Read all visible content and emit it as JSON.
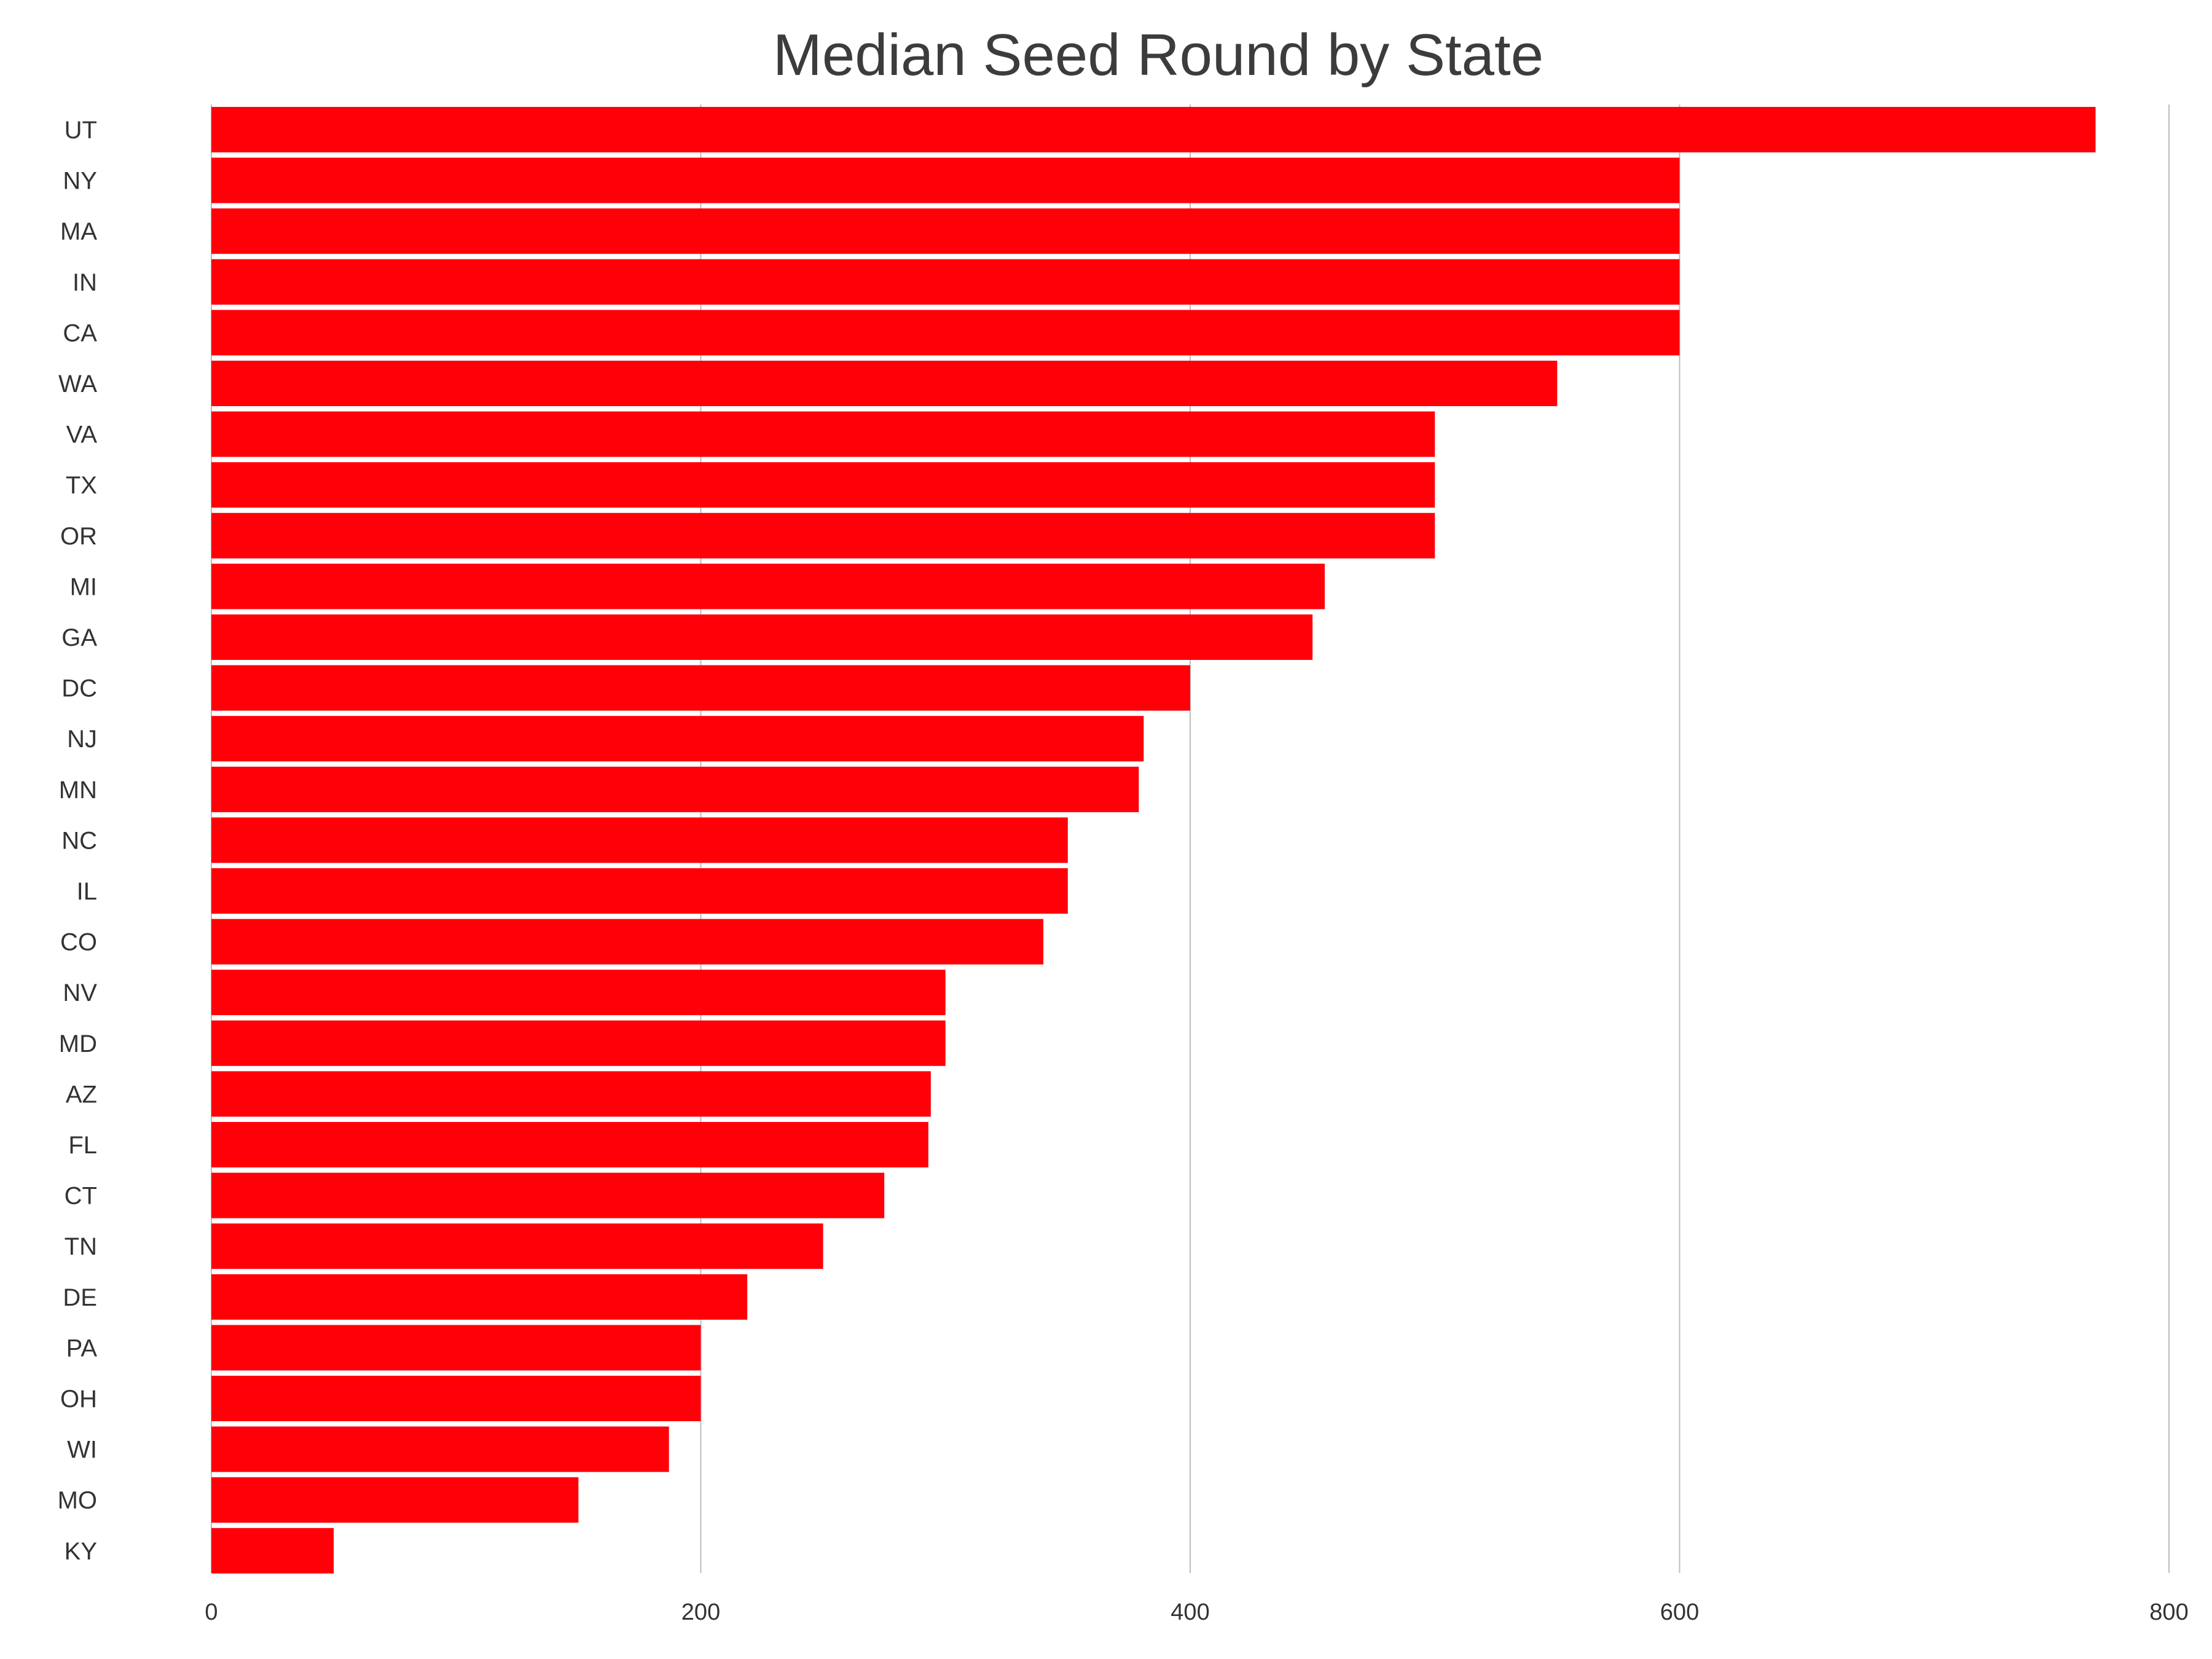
{
  "chart_data": {
    "type": "bar",
    "orientation": "horizontal",
    "title": "Median Seed Round by State",
    "xlabel": "",
    "ylabel": "",
    "categories": [
      "UT",
      "NY",
      "MA",
      "IN",
      "CA",
      "WA",
      "VA",
      "TX",
      "OR",
      "MI",
      "GA",
      "DC",
      "NJ",
      "MN",
      "NC",
      "IL",
      "CO",
      "NV",
      "MD",
      "AZ",
      "FL",
      "CT",
      "TN",
      "DE",
      "PA",
      "OH",
      "WI",
      "MO",
      "KY"
    ],
    "values": [
      770,
      600,
      600,
      600,
      600,
      550,
      500,
      500,
      500,
      455,
      450,
      400,
      381,
      379,
      350,
      350,
      340,
      300,
      300,
      294,
      293,
      275,
      250,
      219,
      200,
      200,
      187,
      150,
      50
    ],
    "xlim": [
      0,
      800
    ],
    "xticks": [
      "0",
      "200",
      "400",
      "600",
      "800"
    ],
    "tick_values": [
      0,
      200,
      400,
      600,
      800
    ],
    "grid": "vertical",
    "legend": "none",
    "bar_color": "#ff0008",
    "grid_color": "#bdbdbd"
  }
}
